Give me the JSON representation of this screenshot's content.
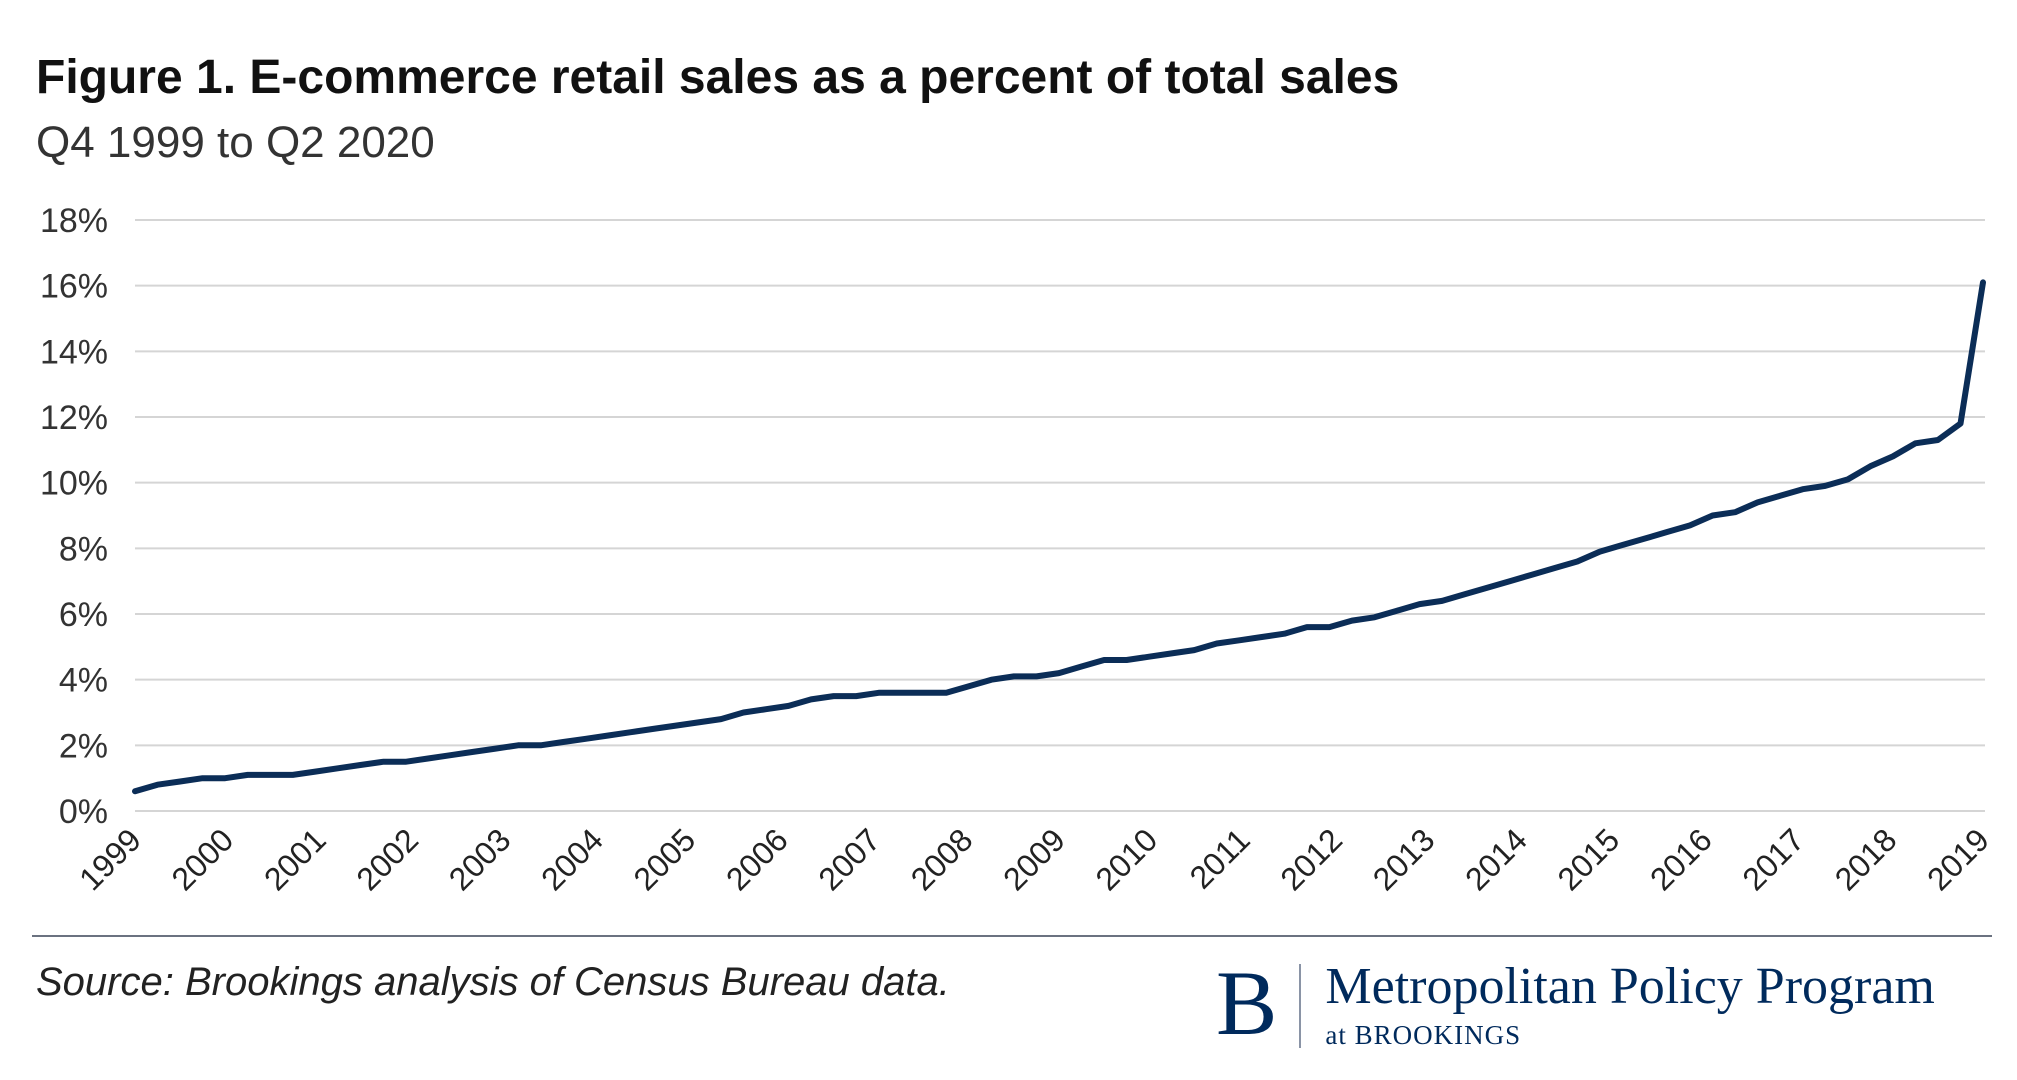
{
  "chart_data": {
    "type": "line",
    "title": "Figure 1. E-commerce retail sales as a percent of total sales",
    "subtitle": "Q4 1999 to Q2 2020",
    "xlabel": "",
    "ylabel": "",
    "ylim": [
      0,
      18
    ],
    "yticks": [
      "0%",
      "2%",
      "4%",
      "6%",
      "8%",
      "10%",
      "12%",
      "14%",
      "16%",
      "18%"
    ],
    "xticks": [
      "1999",
      "2000",
      "2001",
      "2002",
      "2003",
      "2004",
      "2005",
      "2006",
      "2007",
      "2008",
      "2009",
      "2010",
      "2011",
      "2012",
      "2013",
      "2014",
      "2015",
      "2016",
      "2017",
      "2018",
      "2019"
    ],
    "grid": true,
    "legend": "none",
    "line_color": "#0b2d57",
    "grid_color": "#d5d5d5",
    "series": [
      {
        "x": [
          "Q4 1999",
          "Q1 2000",
          "Q2 2000",
          "Q3 2000",
          "Q4 2000",
          "Q1 2001",
          "Q2 2001",
          "Q3 2001",
          "Q4 2001",
          "Q1 2002",
          "Q2 2002",
          "Q3 2002",
          "Q4 2002",
          "Q1 2003",
          "Q2 2003",
          "Q3 2003",
          "Q4 2003",
          "Q1 2004",
          "Q2 2004",
          "Q3 2004",
          "Q4 2004",
          "Q1 2005",
          "Q2 2005",
          "Q3 2005",
          "Q4 2005",
          "Q1 2006",
          "Q2 2006",
          "Q3 2006",
          "Q4 2006",
          "Q1 2007",
          "Q2 2007",
          "Q3 2007",
          "Q4 2007",
          "Q1 2008",
          "Q2 2008",
          "Q3 2008",
          "Q4 2008",
          "Q1 2009",
          "Q2 2009",
          "Q3 2009",
          "Q4 2009",
          "Q1 2010",
          "Q2 2010",
          "Q3 2010",
          "Q4 2010",
          "Q1 2011",
          "Q2 2011",
          "Q3 2011",
          "Q4 2011",
          "Q1 2012",
          "Q2 2012",
          "Q3 2012",
          "Q4 2012",
          "Q1 2013",
          "Q2 2013",
          "Q3 2013",
          "Q4 2013",
          "Q1 2014",
          "Q2 2014",
          "Q3 2014",
          "Q4 2014",
          "Q1 2015",
          "Q2 2015",
          "Q3 2015",
          "Q4 2015",
          "Q1 2016",
          "Q2 2016",
          "Q3 2016",
          "Q4 2016",
          "Q1 2017",
          "Q2 2017",
          "Q3 2017",
          "Q4 2017",
          "Q1 2018",
          "Q2 2018",
          "Q3 2018",
          "Q4 2018",
          "Q1 2019",
          "Q2 2019",
          "Q3 2019",
          "Q4 2019",
          "Q1 2020",
          "Q2 2020"
        ],
        "values": [
          0.6,
          0.8,
          0.9,
          1.0,
          1.0,
          1.1,
          1.1,
          1.1,
          1.2,
          1.3,
          1.4,
          1.5,
          1.5,
          1.6,
          1.7,
          1.8,
          1.9,
          2.0,
          2.0,
          2.1,
          2.2,
          2.3,
          2.4,
          2.5,
          2.6,
          2.7,
          2.8,
          3.0,
          3.1,
          3.2,
          3.4,
          3.5,
          3.5,
          3.6,
          3.6,
          3.6,
          3.6,
          3.8,
          4.0,
          4.1,
          4.1,
          4.2,
          4.4,
          4.6,
          4.6,
          4.7,
          4.8,
          4.9,
          5.1,
          5.2,
          5.3,
          5.4,
          5.6,
          5.6,
          5.8,
          5.9,
          6.1,
          6.3,
          6.4,
          6.6,
          6.8,
          7.0,
          7.2,
          7.4,
          7.6,
          7.9,
          8.1,
          8.3,
          8.5,
          8.7,
          9.0,
          9.1,
          9.4,
          9.6,
          9.8,
          9.9,
          10.1,
          10.5,
          10.8,
          11.2,
          11.3,
          11.8,
          16.1
        ]
      }
    ]
  },
  "footer": {
    "source": "Source: Brookings analysis of Census Bureau data.",
    "logo_mark": "B",
    "logo_main": "Metropolitan Policy Program",
    "logo_sub": "at BROOKINGS"
  }
}
